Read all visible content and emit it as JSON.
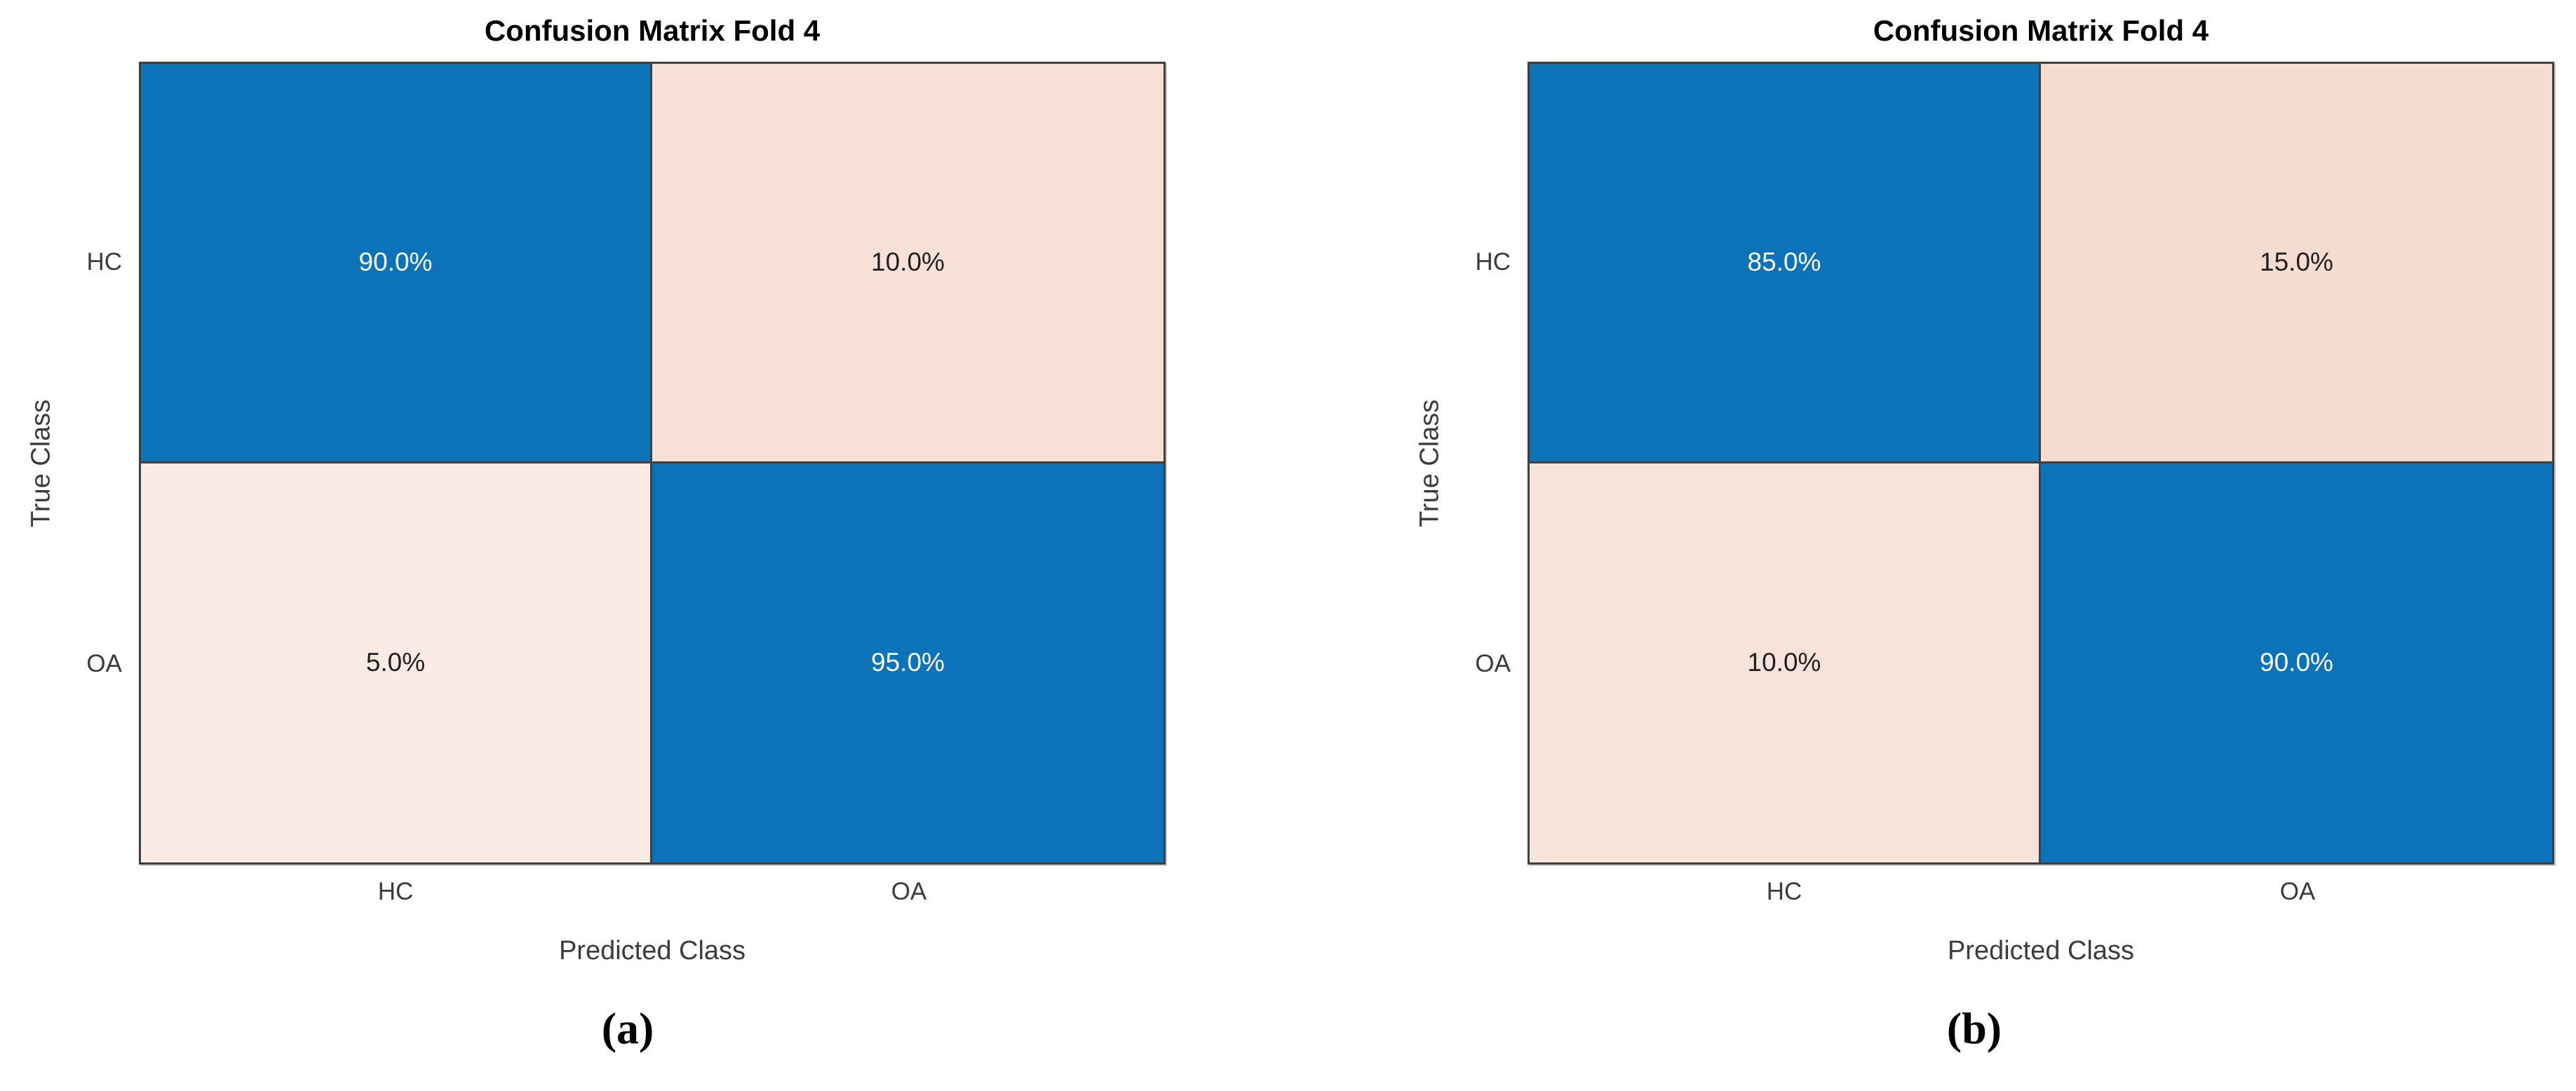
{
  "palette": {
    "diagonal_blue": "#0c73b8",
    "offdiag_pink_5": "#fbebe4",
    "offdiag_pink_10": "#f7e1d7",
    "offdiag_pink_15": "#f5dcd0",
    "grid_line": "#3f3f3f",
    "axis_text": "#3c3c3c",
    "title_text": "#000000",
    "cell_text_light": "#ffffff",
    "cell_text_dark": "#1f1f1f"
  },
  "chart_data": [
    {
      "type": "heatmap",
      "title": "Confusion Matrix Fold 4",
      "xlabel": "Predicted Class",
      "ylabel": "True Class",
      "caption": "(a)",
      "x_categories": [
        "HC",
        "OA"
      ],
      "y_categories": [
        "HC",
        "OA"
      ],
      "values_percent": [
        [
          90.0,
          10.0
        ],
        [
          5.0,
          95.0
        ]
      ],
      "cell_labels": [
        [
          "90.0%",
          "10.0%"
        ],
        [
          "5.0%",
          "95.0%"
        ]
      ],
      "cell_bg": [
        [
          "#0c73b8",
          "#f7e1d7"
        ],
        [
          "#fbebe4",
          "#0c73b8"
        ]
      ],
      "cell_fg": [
        [
          "#ffffff",
          "#1f1f1f"
        ],
        [
          "#1f1f1f",
          "#ffffff"
        ]
      ],
      "grid": "on",
      "legend": "none"
    },
    {
      "type": "heatmap",
      "title": "Confusion Matrix Fold 4",
      "xlabel": "Predicted Class",
      "ylabel": "True Class",
      "caption": "(b)",
      "x_categories": [
        "HC",
        "OA"
      ],
      "y_categories": [
        "HC",
        "OA"
      ],
      "values_percent": [
        [
          85.0,
          15.0
        ],
        [
          10.0,
          90.0
        ]
      ],
      "cell_labels": [
        [
          "85.0%",
          "15.0%"
        ],
        [
          "10.0%",
          "90.0%"
        ]
      ],
      "cell_bg": [
        [
          "#0c73b8",
          "#f5dcd0"
        ],
        [
          "#f8e3da",
          "#0c73b8"
        ]
      ],
      "cell_fg": [
        [
          "#ffffff",
          "#1f1f1f"
        ],
        [
          "#1f1f1f",
          "#ffffff"
        ]
      ],
      "grid": "on",
      "legend": "none"
    }
  ]
}
